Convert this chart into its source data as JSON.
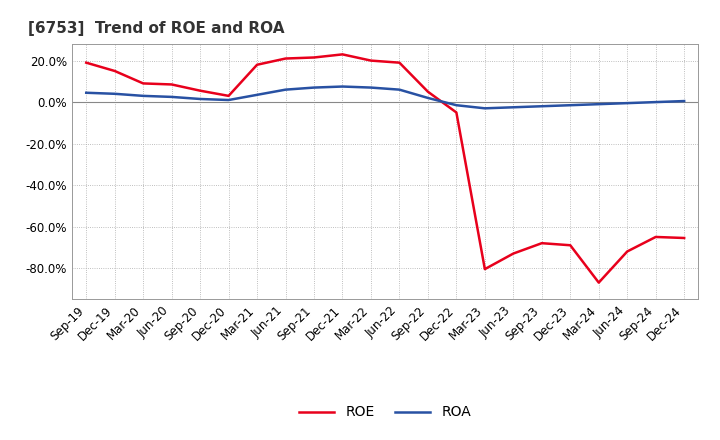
{
  "title": "[6753]  Trend of ROE and ROA",
  "labels": [
    "Sep-19",
    "Dec-19",
    "Mar-20",
    "Jun-20",
    "Sep-20",
    "Dec-20",
    "Mar-21",
    "Jun-21",
    "Sep-21",
    "Dec-21",
    "Mar-22",
    "Jun-22",
    "Sep-22",
    "Dec-22",
    "Mar-23",
    "Jun-23",
    "Sep-23",
    "Dec-23",
    "Mar-24",
    "Jun-24",
    "Sep-24",
    "Dec-24"
  ],
  "ROE": [
    19.0,
    15.0,
    9.0,
    8.5,
    5.5,
    3.0,
    18.0,
    21.0,
    21.5,
    23.0,
    20.0,
    19.0,
    5.0,
    -5.0,
    -80.5,
    -73.0,
    -68.0,
    -69.0,
    -87.0,
    -72.0,
    -65.0,
    -65.5
  ],
  "ROA": [
    4.5,
    4.0,
    3.0,
    2.5,
    1.5,
    1.0,
    3.5,
    6.0,
    7.0,
    7.5,
    7.0,
    6.0,
    2.0,
    -1.5,
    -3.0,
    -2.5,
    -2.0,
    -1.5,
    -1.0,
    -0.5,
    0.0,
    0.5
  ],
  "ROE_color": "#e8001c",
  "ROA_color": "#2851a3",
  "bg_color": "#ffffff",
  "plot_bg_color": "#ffffff",
  "grid_color": "#aaaaaa",
  "zero_line_color": "#888888",
  "ylim": [
    -95,
    28
  ],
  "yticks": [
    -80,
    -60,
    -40,
    -20,
    0,
    20
  ],
  "title_fontsize": 11,
  "legend_fontsize": 10,
  "tick_fontsize": 8.5
}
